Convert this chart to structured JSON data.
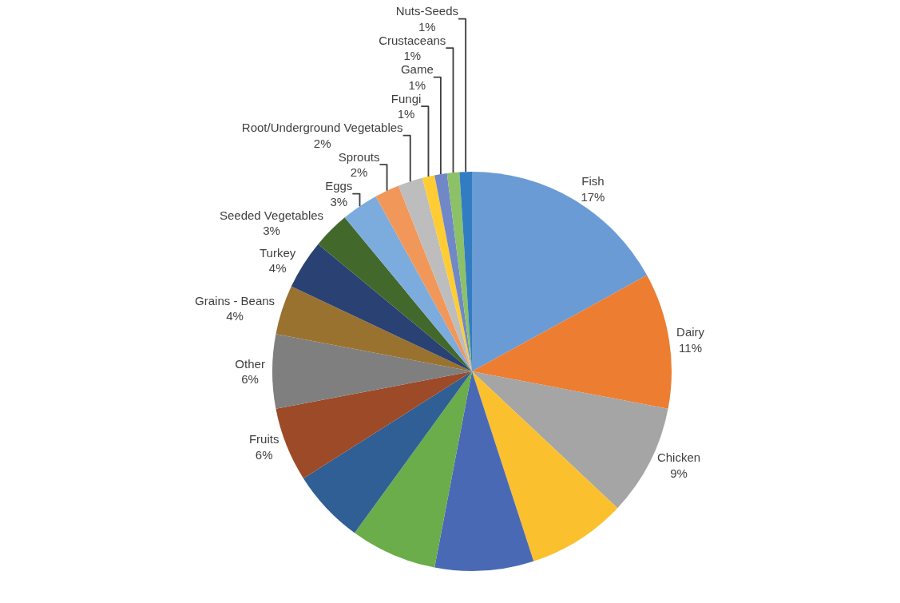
{
  "chart_data": {
    "type": "pie",
    "categories": [
      "Fish",
      "Dairy",
      "Chicken",
      null,
      null,
      null,
      null,
      "Fruits",
      "Other",
      "Grains - Beans",
      "Turkey",
      "Seeded Vegetables",
      "Eggs",
      "Sprouts",
      "Root/Underground Vegetables",
      "Fungi",
      "Game",
      "Crustaceans",
      "Nuts-Seeds"
    ],
    "values": [
      17,
      11,
      9,
      8,
      8,
      7,
      6,
      6,
      6,
      4,
      4,
      3,
      3,
      2,
      2,
      1,
      1,
      1,
      1
    ],
    "value_labels": [
      "17%",
      "11%",
      "9%",
      null,
      null,
      null,
      null,
      "6%",
      "6%",
      "4%",
      "4%",
      "3%",
      "3%",
      "2%",
      "2%",
      "1%",
      "1%",
      "1%",
      "1%"
    ],
    "colors": [
      "#6a9bd4",
      "#ed7d31",
      "#a5a5a5",
      "#fbc02d",
      "#4a69b5",
      "#6aad4a",
      "#2f5f94",
      "#9c4a28",
      "#7f7f7f",
      "#9a7230",
      "#2a4173",
      "#43682b",
      "#7cacdd",
      "#f1975a",
      "#bdbdbd",
      "#ffcd33",
      "#7088c8",
      "#8cc168",
      "#327dc2"
    ],
    "legend": false
  }
}
